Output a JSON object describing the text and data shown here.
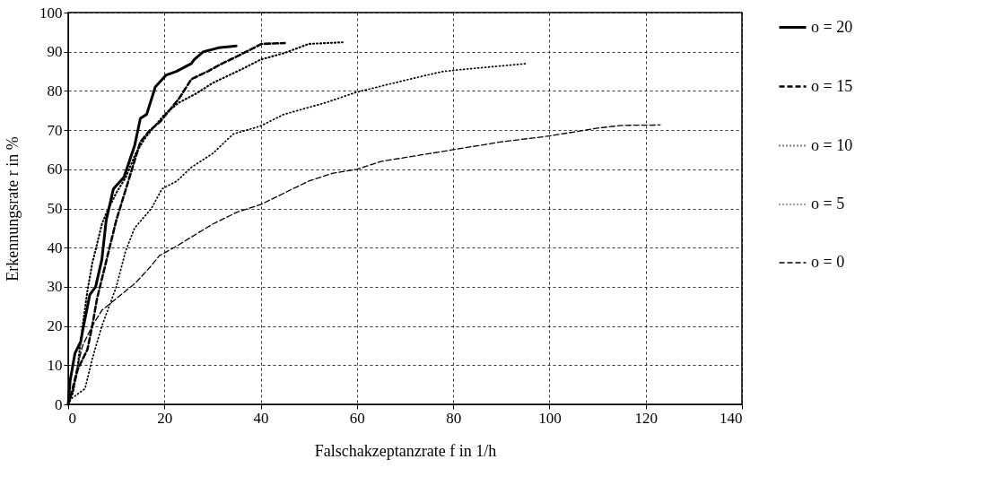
{
  "chart_data": {
    "type": "line",
    "xlabel": "Falschakzeptanzrate f in 1/h",
    "ylabel": "Erkennungsrate r in %",
    "xlim": [
      0,
      140
    ],
    "xticks": [
      0,
      20,
      40,
      60,
      80,
      100,
      120,
      140
    ],
    "ylim": [
      0,
      100
    ],
    "yticks": [
      0,
      10,
      20,
      30,
      40,
      50,
      60,
      70,
      80,
      90,
      100
    ],
    "grid": true,
    "legend": "right",
    "marker": "none",
    "series": [
      {
        "name": "o = 20",
        "color": "#000000",
        "line_style": "solid",
        "x": [
          0,
          0.4,
          1.4,
          2.6,
          3.2,
          4.5,
          5.7,
          7,
          7.9,
          9.4,
          11.6,
          13.8,
          15,
          16.3,
          18.1,
          20.3,
          22.5,
          25.6,
          26.2,
          28.1,
          31.2,
          34.9
        ],
        "values": [
          0,
          6,
          13,
          16,
          20,
          28,
          30,
          37,
          47,
          55,
          58,
          66,
          73,
          74,
          81,
          84,
          85,
          87,
          88,
          90,
          91,
          91.5
        ]
      },
      {
        "name": "o = 15",
        "color": "#000000",
        "line_style": "dashed",
        "x": [
          0,
          1,
          2,
          4,
          5,
          6,
          8,
          10,
          12,
          14,
          15,
          17,
          19,
          21,
          23,
          25.6,
          29,
          32,
          34.9,
          37,
          40.2,
          45
        ],
        "values": [
          0,
          4,
          9,
          14,
          20,
          27,
          37,
          47,
          55,
          63,
          67,
          70,
          72,
          75,
          78,
          83,
          85,
          87,
          88.7,
          90,
          92,
          92.2
        ]
      },
      {
        "name": "o = 10",
        "color": "#000000",
        "line_style": "dotted",
        "x": [
          0,
          1,
          2,
          3,
          4,
          5,
          6,
          7,
          8,
          10,
          12,
          14,
          16,
          18,
          20,
          23,
          26.7,
          30,
          36,
          40,
          45,
          50,
          57
        ],
        "values": [
          0,
          3,
          10,
          20,
          29,
          36,
          41,
          46,
          49,
          54,
          58,
          64,
          68,
          71,
          74,
          77,
          79.4,
          82,
          85.5,
          88,
          89.7,
          92,
          92.4
        ]
      },
      {
        "name": "o = 5",
        "color": "#000000",
        "line_style": "dotted",
        "x": [
          0,
          0.7,
          3.5,
          5,
          7,
          10,
          11.9,
          13.8,
          17.3,
          19.5,
          22.6,
          25.6,
          30,
          34.3,
          39.9,
          44.8,
          53.5,
          59.7,
          69.6,
          77.6,
          80.4,
          95.5
        ],
        "values": [
          0,
          1.5,
          4,
          11.6,
          20,
          30,
          39,
          45,
          50,
          55,
          57,
          60.5,
          64,
          69,
          71,
          74,
          77,
          79.6,
          82.6,
          84.9,
          85.3,
          87
        ]
      },
      {
        "name": "o = 0",
        "color": "#000000",
        "line_style": "dashed",
        "x": [
          0,
          1,
          2,
          3,
          5,
          7,
          10,
          14,
          17,
          19,
          22,
          26,
          30,
          35,
          40,
          45,
          50,
          55,
          60,
          65,
          70,
          75,
          80,
          85,
          90,
          100,
          105,
          110,
          115,
          123
        ],
        "values": [
          0,
          5,
          10,
          15,
          20,
          24,
          27,
          31,
          35,
          38,
          40,
          43,
          46,
          49,
          51,
          54,
          57,
          59,
          60,
          62,
          63,
          64,
          65,
          66,
          67,
          68.5,
          69.5,
          70.5,
          71.2,
          71.3
        ]
      }
    ]
  }
}
